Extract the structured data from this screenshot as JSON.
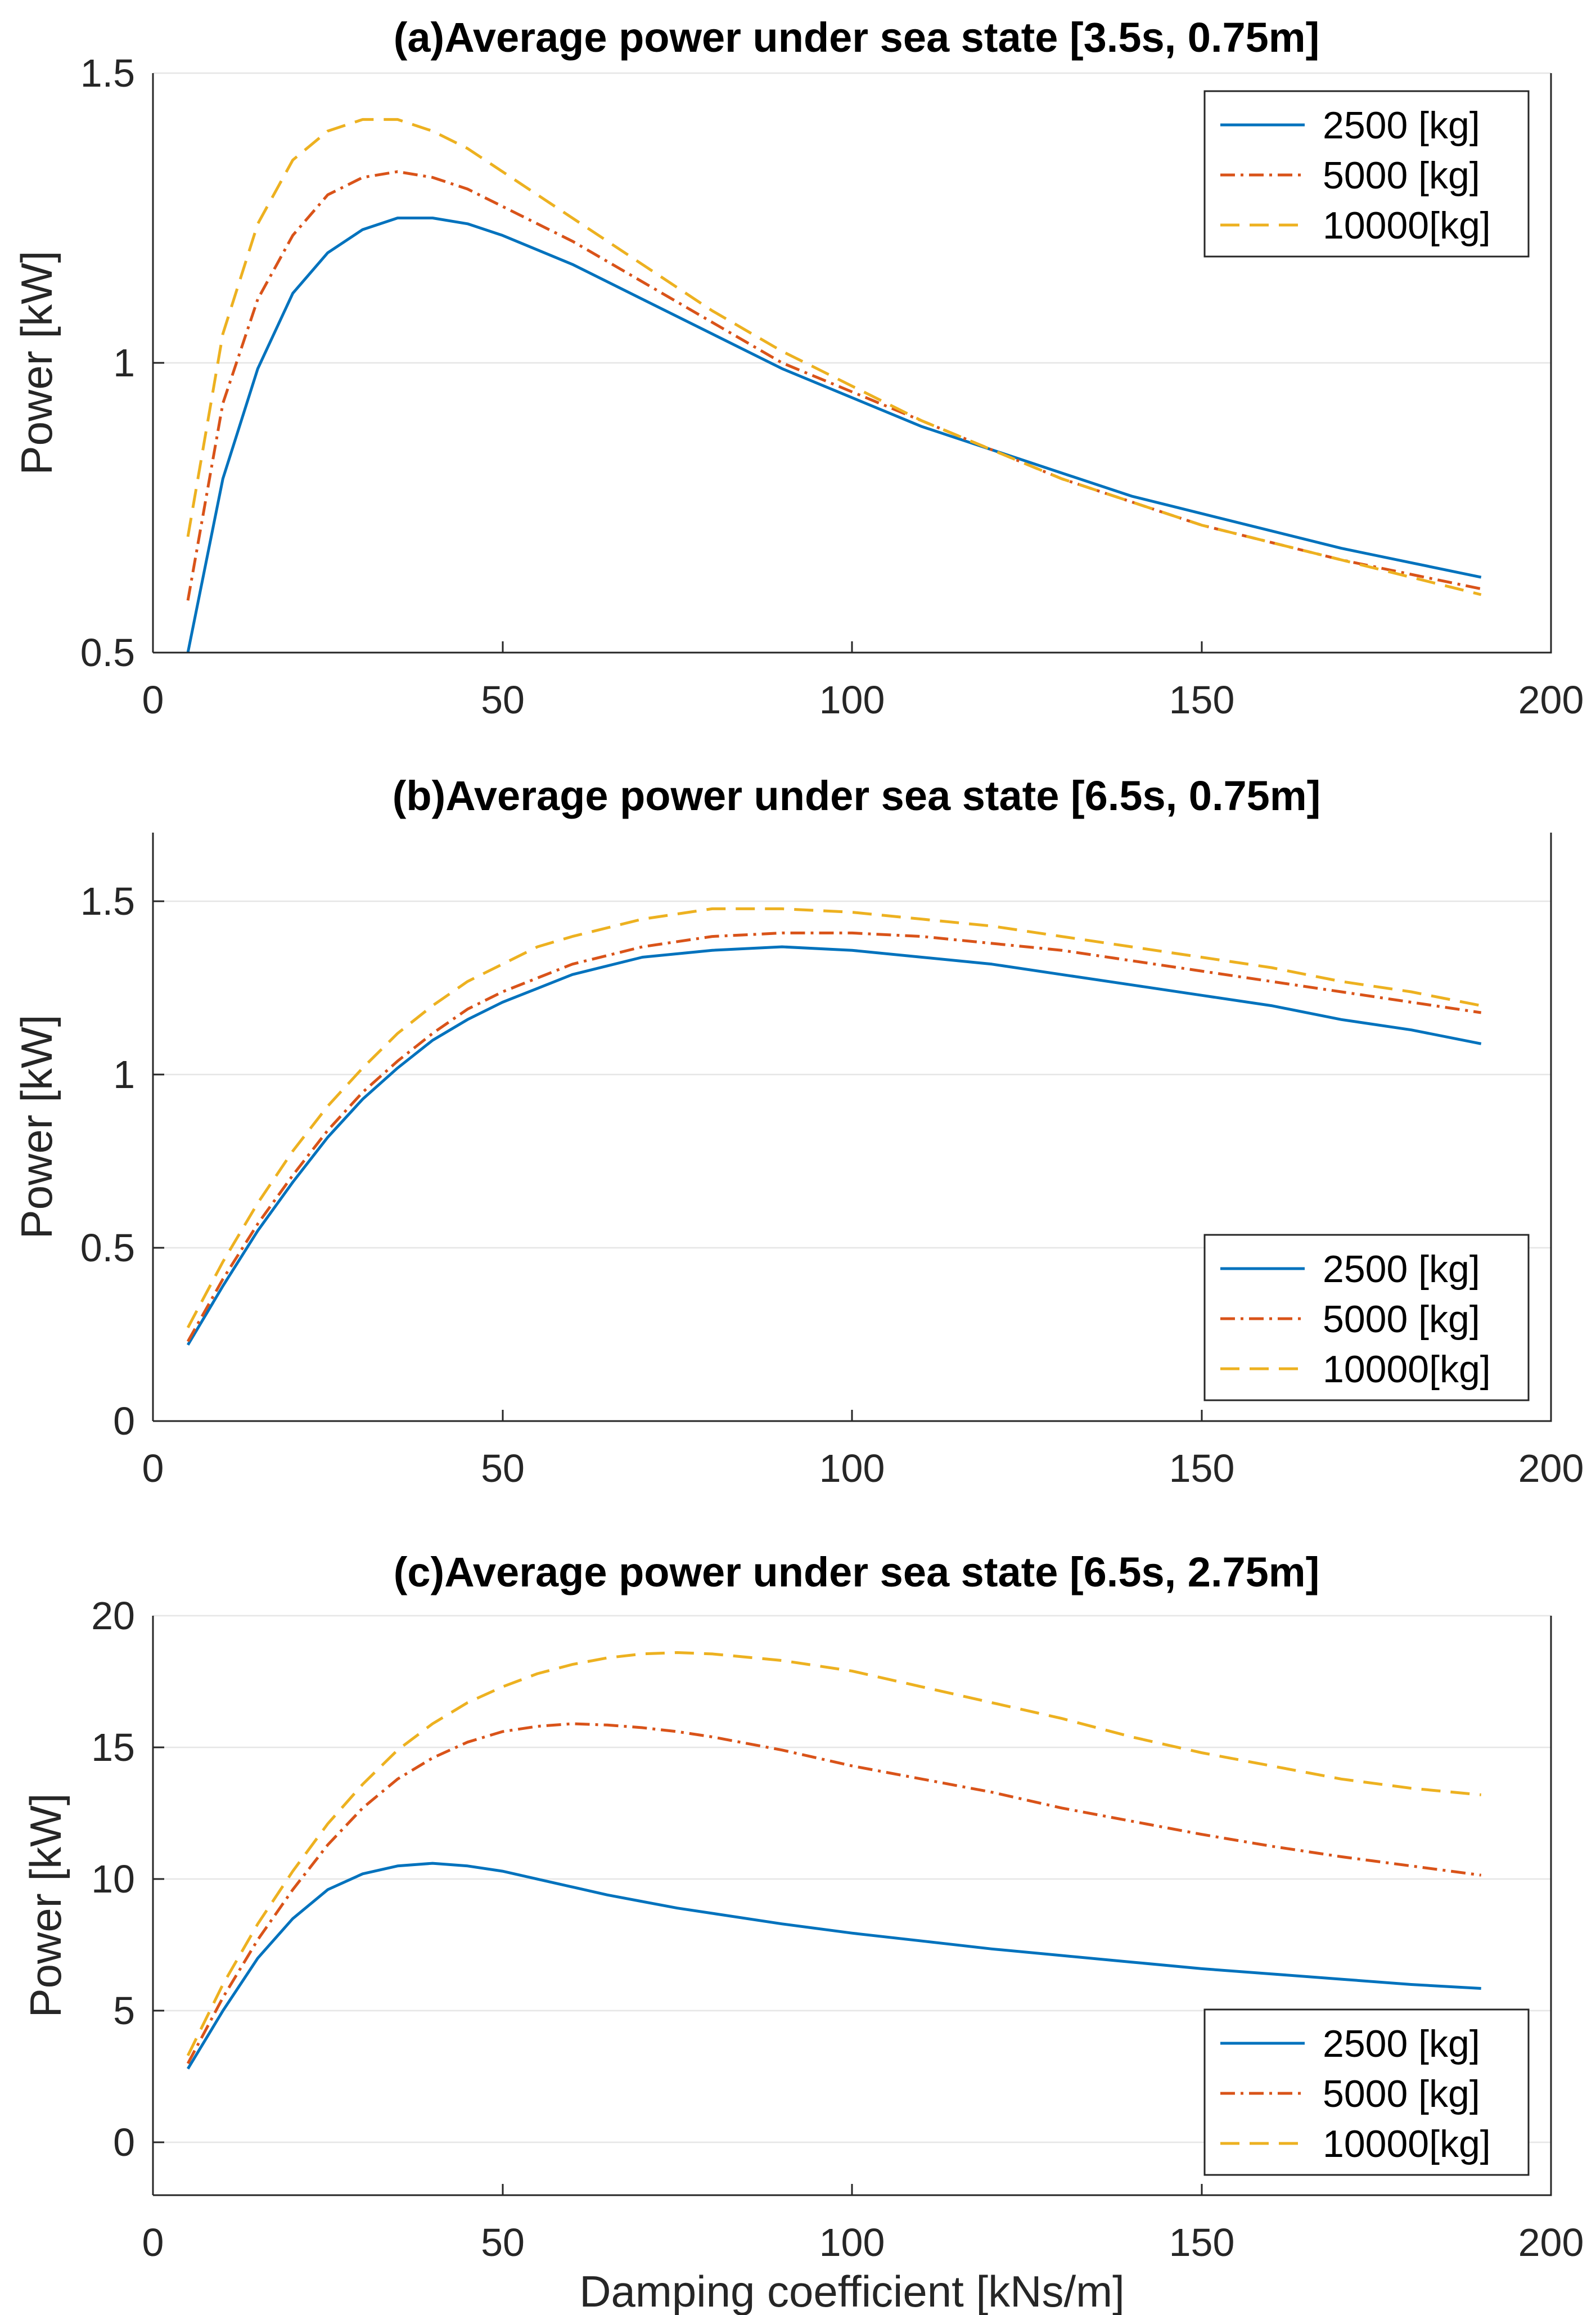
{
  "chart_data": [
    {
      "type": "line",
      "title": "(a)Average power under sea state [3.5s, 0.75m]",
      "xlabel": "",
      "ylabel": "Power [kW]",
      "xlim": [
        0,
        200
      ],
      "ylim": [
        0.5,
        1.5
      ],
      "xticks": [
        "0",
        "50",
        "100",
        "150",
        "200"
      ],
      "yticks": [
        "0.5",
        "1",
        "1.5"
      ],
      "grid": true,
      "legend_position": "top-right",
      "x": [
        5,
        10,
        15,
        20,
        25,
        30,
        35,
        40,
        45,
        50,
        60,
        70,
        80,
        90,
        100,
        110,
        120,
        130,
        140,
        150,
        160,
        170,
        180,
        190
      ],
      "series": [
        {
          "name": "2500  [kg]",
          "color": "#0072BD",
          "dash": "solid",
          "values": [
            0.5,
            0.8,
            0.99,
            1.12,
            1.19,
            1.23,
            1.25,
            1.25,
            1.24,
            1.22,
            1.17,
            1.11,
            1.05,
            0.99,
            0.94,
            0.89,
            0.85,
            0.81,
            0.77,
            0.74,
            0.71,
            0.68,
            0.655,
            0.63
          ]
        },
        {
          "name": "5000  [kg]",
          "color": "#D95319",
          "dash": "dashdot",
          "values": [
            0.59,
            0.93,
            1.11,
            1.22,
            1.29,
            1.32,
            1.33,
            1.32,
            1.3,
            1.27,
            1.21,
            1.14,
            1.07,
            1.0,
            0.95,
            0.9,
            0.85,
            0.8,
            0.76,
            0.72,
            0.69,
            0.66,
            0.635,
            0.61
          ]
        },
        {
          "name": "10000[kg]",
          "color": "#EDB120",
          "dash": "dashed",
          "values": [
            0.7,
            1.05,
            1.24,
            1.35,
            1.4,
            1.42,
            1.42,
            1.4,
            1.37,
            1.33,
            1.25,
            1.17,
            1.09,
            1.02,
            0.96,
            0.9,
            0.85,
            0.8,
            0.76,
            0.72,
            0.69,
            0.66,
            0.63,
            0.6
          ]
        }
      ]
    },
    {
      "type": "line",
      "title": "(b)Average power under sea state [6.5s, 0.75m]",
      "xlabel": "",
      "ylabel": "Power [kW]",
      "xlim": [
        0,
        200
      ],
      "ylim": [
        0,
        1.7
      ],
      "xticks": [
        "0",
        "50",
        "100",
        "150",
        "200"
      ],
      "yticks": [
        "0",
        "0.5",
        "1",
        "1.5"
      ],
      "grid": true,
      "legend_position": "bottom-right",
      "x": [
        5,
        10,
        15,
        20,
        25,
        30,
        35,
        40,
        45,
        50,
        55,
        60,
        70,
        80,
        90,
        100,
        110,
        120,
        130,
        140,
        150,
        160,
        170,
        180,
        190
      ],
      "series": [
        {
          "name": "2500  [kg]",
          "color": "#0072BD",
          "dash": "solid",
          "values": [
            0.22,
            0.39,
            0.55,
            0.69,
            0.82,
            0.93,
            1.02,
            1.1,
            1.16,
            1.21,
            1.25,
            1.29,
            1.34,
            1.36,
            1.37,
            1.36,
            1.34,
            1.32,
            1.29,
            1.26,
            1.23,
            1.2,
            1.16,
            1.13,
            1.09
          ]
        },
        {
          "name": "5000  [kg]",
          "color": "#D95319",
          "dash": "dashdot",
          "values": [
            0.23,
            0.41,
            0.57,
            0.71,
            0.84,
            0.95,
            1.04,
            1.12,
            1.19,
            1.24,
            1.28,
            1.32,
            1.37,
            1.4,
            1.41,
            1.41,
            1.4,
            1.38,
            1.36,
            1.33,
            1.3,
            1.27,
            1.24,
            1.21,
            1.18
          ]
        },
        {
          "name": "10000[kg]",
          "color": "#EDB120",
          "dash": "dashed",
          "values": [
            0.27,
            0.46,
            0.63,
            0.78,
            0.91,
            1.02,
            1.12,
            1.2,
            1.27,
            1.32,
            1.37,
            1.4,
            1.45,
            1.48,
            1.48,
            1.47,
            1.45,
            1.43,
            1.4,
            1.37,
            1.34,
            1.31,
            1.27,
            1.24,
            1.2
          ]
        }
      ]
    },
    {
      "type": "line",
      "title": "(c)Average power under sea state [6.5s, 2.75m]",
      "xlabel": "Damping coefficient [kNs/m]",
      "ylabel": "Power [kW]",
      "xlim": [
        0,
        200
      ],
      "ylim": [
        -2,
        20
      ],
      "xticks": [
        "0",
        "50",
        "100",
        "150",
        "200"
      ],
      "yticks": [
        "0",
        "5",
        "10",
        "15",
        "20"
      ],
      "grid": true,
      "legend_position": "bottom-right",
      "x": [
        5,
        10,
        15,
        20,
        25,
        30,
        35,
        40,
        45,
        50,
        55,
        60,
        65,
        70,
        75,
        80,
        90,
        100,
        110,
        120,
        130,
        140,
        150,
        160,
        170,
        180,
        190
      ],
      "series": [
        {
          "name": "2500  [kg]",
          "color": "#0072BD",
          "dash": "solid",
          "values": [
            2.8,
            5.0,
            7.0,
            8.5,
            9.6,
            10.2,
            10.5,
            10.6,
            10.5,
            10.3,
            10.0,
            9.7,
            9.4,
            9.15,
            8.9,
            8.7,
            8.3,
            7.95,
            7.65,
            7.35,
            7.1,
            6.85,
            6.6,
            6.4,
            6.2,
            6.0,
            5.85
          ]
        },
        {
          "name": "5000  [kg]",
          "color": "#D95319",
          "dash": "dashdot",
          "values": [
            3.0,
            5.5,
            7.7,
            9.6,
            11.3,
            12.7,
            13.8,
            14.6,
            15.2,
            15.6,
            15.8,
            15.9,
            15.85,
            15.75,
            15.6,
            15.4,
            14.9,
            14.3,
            13.8,
            13.3,
            12.7,
            12.2,
            11.7,
            11.25,
            10.85,
            10.5,
            10.15
          ]
        },
        {
          "name": "10000[kg]",
          "color": "#EDB120",
          "dash": "dashed",
          "values": [
            3.3,
            6.0,
            8.3,
            10.3,
            12.1,
            13.6,
            14.9,
            15.9,
            16.7,
            17.3,
            17.8,
            18.15,
            18.4,
            18.55,
            18.6,
            18.55,
            18.3,
            17.9,
            17.3,
            16.7,
            16.1,
            15.4,
            14.8,
            14.3,
            13.8,
            13.45,
            13.2
          ]
        }
      ]
    }
  ]
}
